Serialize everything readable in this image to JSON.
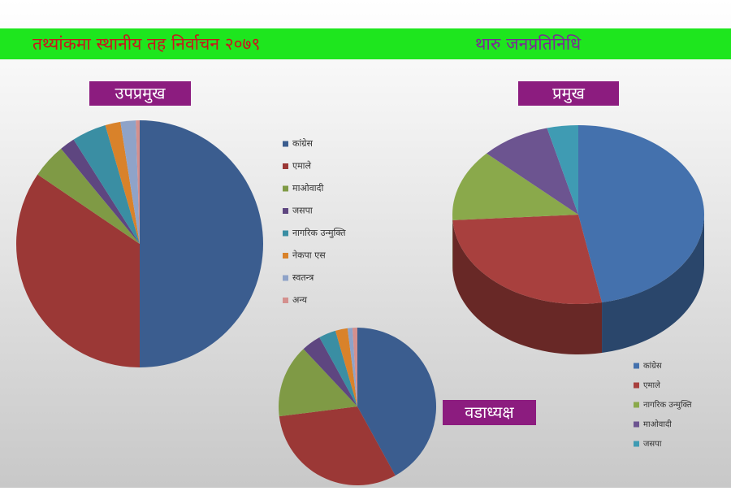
{
  "header": {
    "title": "तथ्यांकमा स्थानीय तह निर्वाचन २०७९",
    "subtitle": "थारु जनप्रतिनिधि"
  },
  "chart_data": [
    {
      "type": "pie",
      "title": "उपप्रमुख",
      "categories": [
        "कांग्रेस",
        "एमाले",
        "माओवादी",
        "जसपा",
        "नागरिक उन्मुक्ति",
        "नेकपा एस",
        "स्वतन्त्र",
        "अन्य"
      ],
      "values": [
        50,
        34.5,
        4.5,
        2,
        4.5,
        2,
        2,
        0.5
      ],
      "colors": [
        "#3b5d8f",
        "#9b3836",
        "#7f9a45",
        "#5e4680",
        "#3a8ea3",
        "#d9822a",
        "#8fa3c8",
        "#d4908e"
      ]
    },
    {
      "type": "pie3d",
      "title": "प्रमुख",
      "categories": [
        "कांग्रेस",
        "एमाले",
        "नागरिक उन्मुक्ति",
        "माओवादी",
        "जसपा"
      ],
      "values": [
        47,
        27,
        13,
        9,
        4
      ],
      "colors": [
        "#4471ad",
        "#a8403e",
        "#8aa94b",
        "#6c5490",
        "#3f9bb3"
      ]
    },
    {
      "type": "pie",
      "title": "वडाध्यक्ष",
      "categories": [
        null,
        null,
        null,
        null,
        null,
        null,
        null,
        null
      ],
      "values": [
        42,
        31,
        15,
        4,
        3.5,
        2.5,
        1,
        1
      ],
      "colors": [
        "#3b5d8f",
        "#9b3836",
        "#7f9a45",
        "#5e4680",
        "#3a8ea3",
        "#d9822a",
        "#8fa3c8",
        "#d4908e"
      ]
    }
  ]
}
